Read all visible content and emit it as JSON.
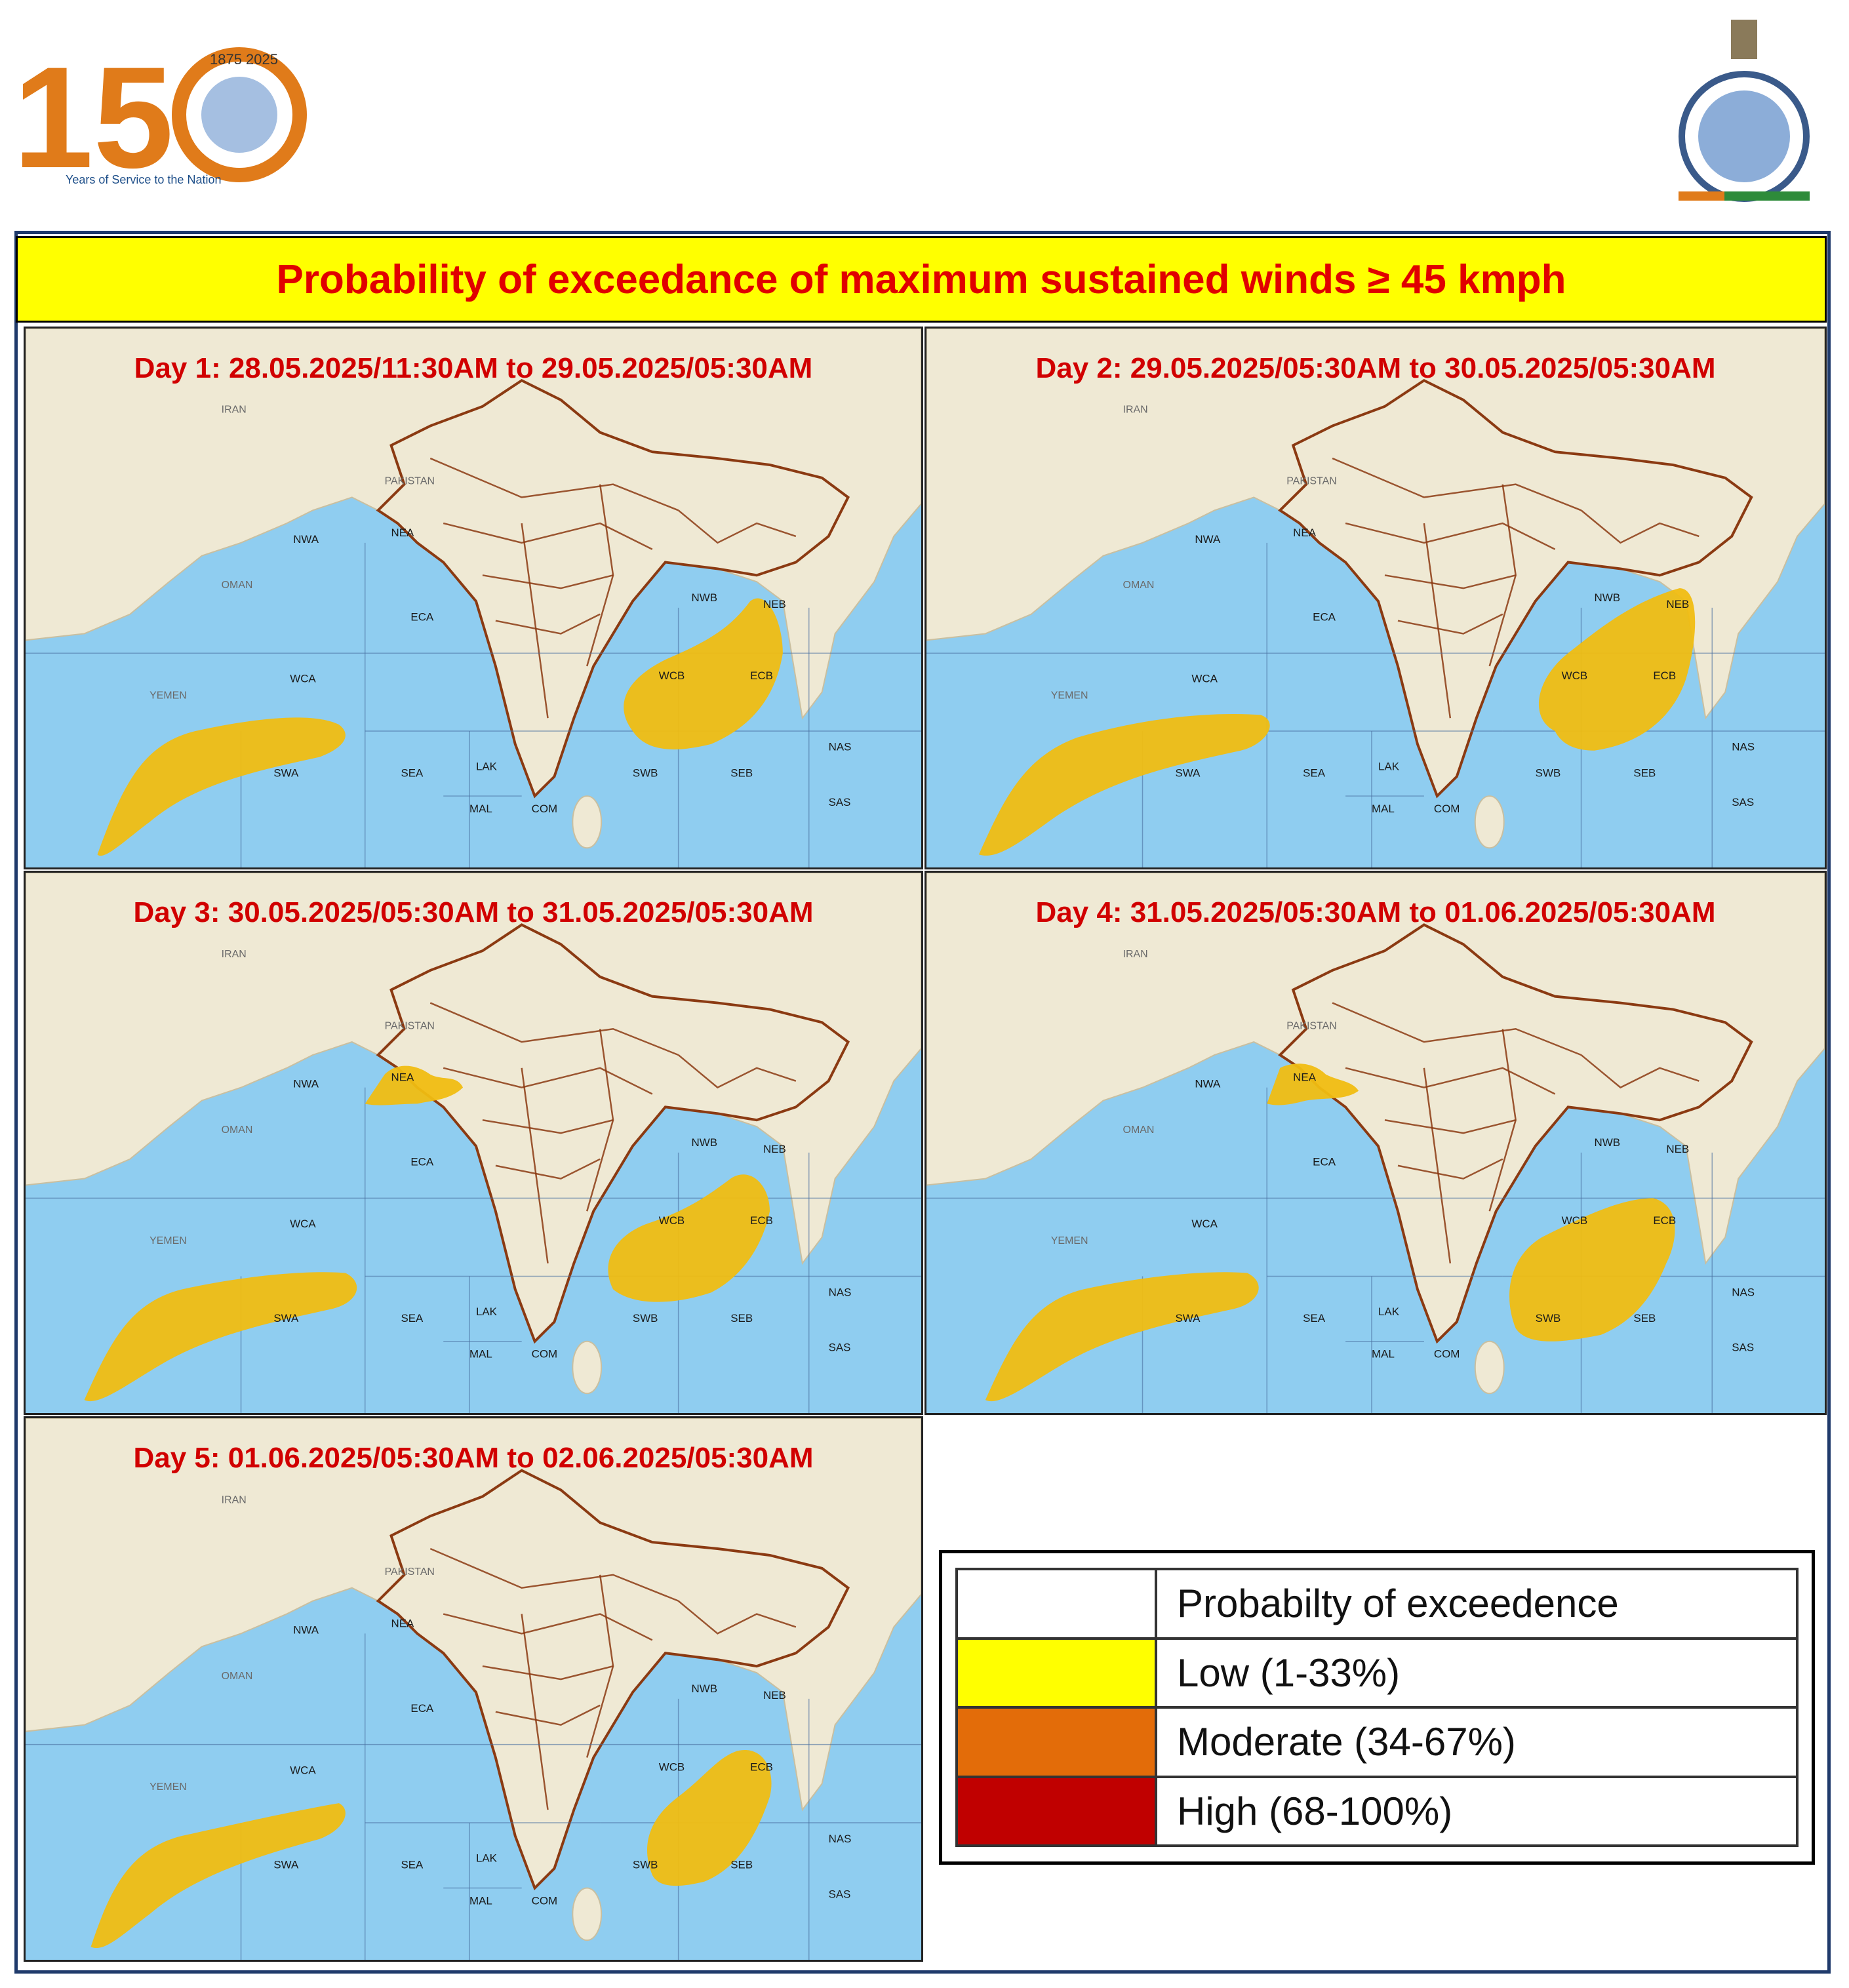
{
  "header": {
    "logo_number": "150",
    "logo_tagline": "Years of Service to the Nation",
    "logo_years": "1875 2025"
  },
  "title": "Probability  of exceedance of maximum sustained winds ≥ 45 kmph",
  "panels": [
    {
      "label": "Day 1: 28.05.2025/11:30AM to 29.05.2025/05:30AM",
      "regions": [
        "NWA",
        "NEA",
        "ECA",
        "WCA",
        "SWA",
        "SEA",
        "LAK",
        "MAL",
        "COM",
        "NWB",
        "NEB",
        "WCB",
        "ECB",
        "SWB",
        "SEB",
        "NAS",
        "SAS"
      ]
    },
    {
      "label": "Day 2: 29.05.2025/05:30AM to 30.05.2025/05:30AM",
      "regions": [
        "NWA",
        "NEA",
        "ECA",
        "WCA",
        "SWA",
        "SEA",
        "LAK",
        "MAL",
        "COM",
        "NWB",
        "NEB",
        "WCB",
        "ECB",
        "SWB",
        "SEB",
        "NAS",
        "SAS"
      ]
    },
    {
      "label": "Day 3:  30.05.2025/05:30AM to 31.05.2025/05:30AM",
      "regions": [
        "NWA",
        "NEA",
        "ECA",
        "WCA",
        "SWA",
        "SEA",
        "LAK",
        "MAL",
        "COM",
        "NWB",
        "NEB",
        "WCB",
        "ECB",
        "SWB",
        "SEB",
        "NAS",
        "SAS"
      ]
    },
    {
      "label": "Day 4: 31.05.2025/05:30AM to 01.06.2025/05:30AM",
      "regions": [
        "NWA",
        "NEA",
        "ECA",
        "WCA",
        "SWA",
        "SEA",
        "LAK",
        "MAL",
        "COM",
        "NWB",
        "NEB",
        "WCB",
        "ECB",
        "SWB",
        "SEB",
        "NAS",
        "SAS"
      ]
    },
    {
      "label": "Day 5: 01.06.2025/05:30AM to 02.06.2025/05:30AM",
      "regions": [
        "NWA",
        "NEA",
        "ECA",
        "WCA",
        "SWA",
        "SEA",
        "LAK",
        "MAL",
        "COM",
        "NWB",
        "NEB",
        "WCB",
        "ECB",
        "SWB",
        "SEB",
        "NAS",
        "SAS"
      ]
    }
  ],
  "map_labels": {
    "iran": "IRAN",
    "pakistan": "PAKISTAN",
    "yemen": "YEMEN",
    "oman": "OMAN"
  },
  "legend": {
    "header": "Probabilty of exceedence",
    "items": [
      {
        "label": "Low (1-33%)",
        "color": "#ffff00"
      },
      {
        "label": "Moderate (34-67%)",
        "color": "#e36c09"
      },
      {
        "label": "High (68-100%)",
        "color": "#c00000"
      }
    ]
  },
  "colors": {
    "sea": "#8fcdf0",
    "land": "#efe9d4",
    "boundary": "#8b3a12",
    "warning_area": "#f0bd12",
    "title_text": "#e00000",
    "banner": "#ffff00"
  }
}
